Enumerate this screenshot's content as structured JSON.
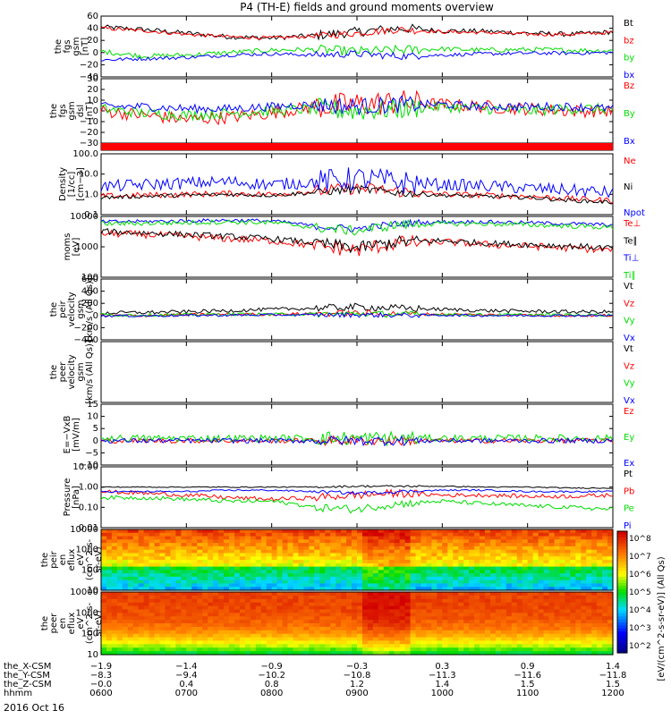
{
  "title": "P4 (TH-E) fields and ground moments overview",
  "date_label": "2016 Oct 16",
  "colors": {
    "black": "#000000",
    "red": "#ff0000",
    "green": "#00dd00",
    "blue": "#0000ff"
  },
  "chart_data": [
    {
      "type": "line",
      "ylabel": [
        "the",
        "fgs",
        "gsm",
        "[nT]"
      ],
      "yticks": [
        "60",
        "40",
        "20",
        "0",
        "−20",
        "−40"
      ],
      "yrange": [
        -40,
        60
      ],
      "series": [
        {
          "name": "Bt",
          "color": "black",
          "base": [
            42,
            38,
            32,
            26,
            24,
            28,
            34,
            40,
            36,
            35,
            32,
            30,
            34
          ],
          "noise": 4
        },
        {
          "name": "bz",
          "color": "red",
          "base": [
            40,
            36,
            30,
            26,
            24,
            27,
            32,
            38,
            34,
            33,
            30,
            30,
            33
          ],
          "noise": 3
        },
        {
          "name": "by",
          "color": "green",
          "base": [
            2,
            -6,
            -4,
            0,
            4,
            5,
            2,
            4,
            6,
            4,
            5,
            4,
            3
          ],
          "noise": 4
        },
        {
          "name": "bx",
          "color": "blue",
          "base": [
            -12,
            -10,
            -8,
            -4,
            -2,
            -4,
            -2,
            -6,
            -4,
            -2,
            -1,
            -1,
            0
          ],
          "noise": 3
        }
      ]
    },
    {
      "type": "line",
      "ylabel": [
        "the",
        "fgs",
        "gsm",
        "dsl",
        "[nT]"
      ],
      "yticks": [
        "30",
        "20",
        "10",
        "0",
        "−10",
        "−20",
        "−30"
      ],
      "yrange": [
        -30,
        30
      ],
      "series": [
        {
          "name": "Bz",
          "color": "red",
          "base": [
            0,
            -4,
            -8,
            -6,
            -2,
            4,
            6,
            8,
            6,
            4,
            2,
            0,
            0
          ],
          "noise": 6
        },
        {
          "name": "By",
          "color": "green",
          "base": [
            2,
            -2,
            -4,
            -2,
            0,
            2,
            0,
            2,
            4,
            2,
            0,
            2,
            2
          ],
          "noise": 5
        },
        {
          "name": "Bx",
          "color": "blue",
          "base": [
            4,
            4,
            2,
            2,
            4,
            6,
            4,
            6,
            6,
            4,
            4,
            4,
            2
          ],
          "noise": 4
        }
      ]
    },
    {
      "type": "flag",
      "ylabel": [],
      "yticks": [],
      "series": []
    },
    {
      "type": "line",
      "ylog": true,
      "ylabel": [
        "Density",
        "[1/cc]",
        "[cm−3]"
      ],
      "yticks": [
        "100.0",
        "10.0",
        "1.0",
        "0.1"
      ],
      "yrange": [
        -1,
        2
      ],
      "series": [
        {
          "name": "Ne",
          "color": "red",
          "base": [
            0.8,
            0.9,
            1.0,
            1.1,
            1.0,
            1.4,
            2.0,
            1.4,
            1.0,
            0.9,
            0.8,
            0.6,
            0.5
          ],
          "noise": 0.3
        },
        {
          "name": "Ni",
          "color": "black",
          "base": [
            0.7,
            0.8,
            0.9,
            1.0,
            0.9,
            1.2,
            1.8,
            1.2,
            0.9,
            0.8,
            0.7,
            0.5,
            0.4
          ],
          "noise": 0.2
        },
        {
          "name": "Npot",
          "color": "blue",
          "base": [
            2.4,
            3.0,
            3.6,
            4.2,
            3.0,
            4.0,
            6.0,
            4.0,
            3.0,
            2.6,
            2.0,
            1.6,
            1.2
          ],
          "noise": 0.6
        }
      ]
    },
    {
      "type": "line",
      "ylog": true,
      "ylabel": [
        "moms",
        "[eV]"
      ],
      "yticks": [
        "10000",
        "1000",
        "100"
      ],
      "yrange": [
        1.5,
        4
      ],
      "series": [
        {
          "name": "Te⊥",
          "color": "red",
          "base": [
            2000,
            1800,
            1500,
            1200,
            1000,
            600,
            400,
            800,
            900,
            700,
            600,
            500,
            400
          ],
          "noise": 0.3
        },
        {
          "name": "Te∥",
          "color": "black",
          "base": [
            2400,
            2100,
            1800,
            1500,
            1200,
            800,
            500,
            900,
            1000,
            800,
            700,
            600,
            500
          ],
          "noise": 0.25
        },
        {
          "name": "Ti⊥",
          "color": "blue",
          "base": [
            6000,
            6200,
            6500,
            7000,
            6500,
            4000,
            3000,
            5000,
            6000,
            6000,
            5500,
            5000,
            4500
          ],
          "noise": 0.15
        },
        {
          "name": "Ti∥",
          "color": "green",
          "base": [
            5000,
            5200,
            5500,
            6000,
            5500,
            3500,
            2500,
            4500,
            5000,
            5000,
            4500,
            4000,
            3500
          ],
          "noise": 0.2
        }
      ]
    },
    {
      "type": "line",
      "ylabel": [
        "the",
        "peir",
        "velocity",
        "gsm",
        "[km/s (All Qs)]"
      ],
      "yticks": [
        "600",
        "400",
        "200",
        "0",
        "−200",
        "−400"
      ],
      "yrange": [
        -400,
        600
      ],
      "series": [
        {
          "name": "Vt",
          "color": "black",
          "base": [
            40,
            50,
            60,
            80,
            100,
            120,
            140,
            120,
            100,
            80,
            70,
            60,
            60
          ],
          "noise": 30
        },
        {
          "name": "Vz",
          "color": "red",
          "base": [
            0,
            0,
            10,
            20,
            20,
            30,
            40,
            30,
            20,
            10,
            10,
            0,
            0
          ],
          "noise": 25
        },
        {
          "name": "Vy",
          "color": "green",
          "base": [
            10,
            10,
            10,
            20,
            20,
            20,
            30,
            20,
            20,
            10,
            10,
            10,
            10
          ],
          "noise": 25
        },
        {
          "name": "Vx",
          "color": "blue",
          "base": [
            -5,
            -5,
            0,
            5,
            10,
            10,
            10,
            5,
            5,
            0,
            0,
            0,
            0
          ],
          "noise": 20
        }
      ]
    },
    {
      "type": "line",
      "ylabel": [
        "the",
        "peer",
        "velocity",
        "gsm",
        "[km/s (All Qs)]"
      ],
      "yticks": [],
      "yrange": [
        -400,
        600
      ],
      "series": [
        {
          "name": "Vt",
          "color": "black",
          "base": [],
          "noise": 0
        },
        {
          "name": "Vz",
          "color": "red",
          "base": [],
          "noise": 0
        },
        {
          "name": "Vy",
          "color": "green",
          "base": [],
          "noise": 0
        },
        {
          "name": "Vx",
          "color": "blue",
          "base": [],
          "noise": 0
        }
      ]
    },
    {
      "type": "line",
      "ylabel": [
        "E=−VxB",
        "[mV/m]"
      ],
      "yticks": [
        "15",
        "10",
        "5",
        "0",
        "−5",
        "−10"
      ],
      "yrange": [
        -10,
        15
      ],
      "series": [
        {
          "name": "Ez",
          "color": "red",
          "base": [
            0,
            0,
            0,
            0,
            0,
            0,
            0,
            0,
            0,
            0,
            0,
            0,
            0
          ],
          "noise": 1.0
        },
        {
          "name": "Ey",
          "color": "green",
          "base": [
            1,
            1,
            1,
            1,
            1,
            1,
            1,
            1,
            1,
            1,
            1,
            1,
            1
          ],
          "noise": 1.5
        },
        {
          "name": "Ex",
          "color": "blue",
          "base": [
            0,
            0,
            0,
            0,
            0,
            0,
            0,
            0,
            0,
            0,
            0,
            0,
            0
          ],
          "noise": 1.0
        }
      ]
    },
    {
      "type": "line",
      "ylog": true,
      "ylabel": [
        "Pressure",
        "[nPa]"
      ],
      "yticks": [
        "10.00",
        "1.00",
        "0.10",
        "0.01"
      ],
      "yrange": [
        -2,
        1
      ],
      "series": [
        {
          "name": "Pt",
          "color": "black",
          "base": [
            1.0,
            1.0,
            1.0,
            1.0,
            1.0,
            1.0,
            1.1,
            1.1,
            1.1,
            1.0,
            1.0,
            0.9,
            0.9
          ],
          "noise": 0.05
        },
        {
          "name": "Pb",
          "color": "red",
          "base": [
            0.6,
            0.5,
            0.4,
            0.3,
            0.25,
            0.3,
            0.4,
            0.5,
            0.4,
            0.4,
            0.35,
            0.35,
            0.4
          ],
          "noise": 0.2
        },
        {
          "name": "Pe",
          "color": "green",
          "base": [
            0.3,
            0.3,
            0.25,
            0.2,
            0.2,
            0.1,
            0.08,
            0.15,
            0.2,
            0.15,
            0.12,
            0.1,
            0.08
          ],
          "noise": 0.2
        },
        {
          "name": "Pi",
          "color": "blue",
          "base": [
            0.6,
            0.6,
            0.6,
            0.7,
            0.7,
            0.6,
            0.5,
            0.6,
            0.7,
            0.7,
            0.6,
            0.6,
            0.6
          ],
          "noise": 0.08
        }
      ]
    },
    {
      "type": "heatmap",
      "ylabel": [
        "the",
        "peir",
        "en",
        "eflux",
        "eV",
        "(cm^2-s-",
        "sr-eV)"
      ],
      "yticks": [
        "10000",
        "1000",
        "100",
        "10"
      ]
    },
    {
      "type": "heatmap",
      "ylabel": [
        "the",
        "peer",
        "en",
        "eflux",
        "eV",
        "(cm^2-s-",
        "sr-eV)"
      ],
      "yticks": [
        "10000",
        "1000",
        "100",
        "10"
      ]
    }
  ],
  "colorbar": {
    "label": "[eV/(cm^2-s-sr-eV)] (All Qs)",
    "ticks": [
      "10^8",
      "10^7",
      "10^6",
      "10^5",
      "10^4",
      "10^3",
      "10^2"
    ]
  },
  "axis_rows": {
    "labels": [
      "the_X-CSM",
      "the_Y-CSM",
      "the_Z-CSM",
      "hhmm"
    ],
    "columns": [
      [
        "−1.9",
        "−8.3",
        "−0.0",
        "0600"
      ],
      [
        "−1.4",
        "−9.4",
        "0.4",
        "0700"
      ],
      [
        "−0.9",
        "−10.2",
        "0.8",
        "0800"
      ],
      [
        "−0.3",
        "−10.8",
        "1.2",
        "0900"
      ],
      [
        "0.3",
        "−11.3",
        "1.4",
        "1000"
      ],
      [
        "0.9",
        "−11.6",
        "1.5",
        "1100"
      ],
      [
        "1.4",
        "−11.8",
        "1.5",
        "1200"
      ]
    ]
  }
}
